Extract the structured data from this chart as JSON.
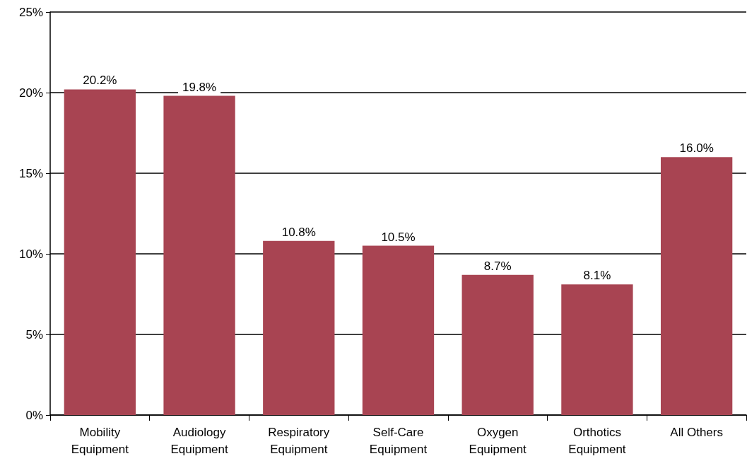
{
  "chart_data": {
    "type": "bar",
    "categories": [
      "Mobility\nEquipment",
      "Audiology\nEquipment",
      "Respiratory\nEquipment",
      "Self-Care\nEquipment",
      "Oxygen\nEquipment",
      "Orthotics\nEquipment",
      "All Others"
    ],
    "values": [
      20.2,
      19.8,
      10.8,
      10.5,
      8.7,
      8.1,
      16.0
    ],
    "value_labels": [
      "20.2%",
      "19.8%",
      "10.8%",
      "10.5%",
      "8.7%",
      "8.1%",
      "16.0%"
    ],
    "color": "#a84452",
    "ylim": [
      0,
      25
    ],
    "yticks": [
      {
        "value": 0,
        "label": "0%"
      },
      {
        "value": 5,
        "label": "5%"
      },
      {
        "value": 10,
        "label": "10%"
      },
      {
        "value": 15,
        "label": "15%"
      },
      {
        "value": 20,
        "label": "20%"
      },
      {
        "value": 25,
        "label": "25%"
      }
    ],
    "grid": "y"
  }
}
